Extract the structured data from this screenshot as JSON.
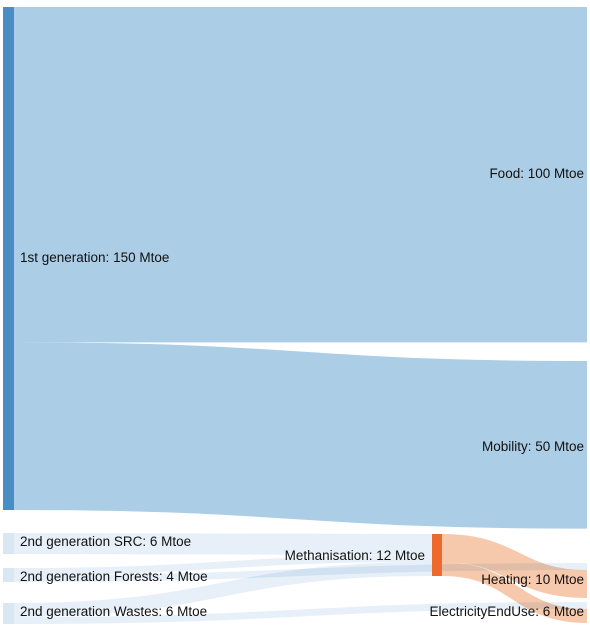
{
  "colors": {
    "first_gen_node": "#4a8cc4",
    "first_gen_link": "#abcde5",
    "second_gen_node": "#d9e7f3",
    "second_gen_link": "#e3edf7",
    "methanisation_node": "#ee6a2c",
    "methanisation_link": "#f6bf9d"
  },
  "chart_data": {
    "type": "sankey",
    "unit": "Mtoe",
    "nodes": [
      {
        "id": "first",
        "label": "1st generation: 150 Mtoe",
        "value": 150
      },
      {
        "id": "food",
        "label": "Food: 100 Mtoe",
        "value": 100
      },
      {
        "id": "mobility",
        "label": "Mobility: 50 Mtoe",
        "value": 50
      },
      {
        "id": "src",
        "label": "2nd generation SRC: 6 Mtoe",
        "value": 6
      },
      {
        "id": "forests",
        "label": "2nd generation Forests: 4 Mtoe",
        "value": 4
      },
      {
        "id": "wastes",
        "label": "2nd generation Wastes: 6 Mtoe",
        "value": 6
      },
      {
        "id": "meth",
        "label": "Methanisation: 12 Mtoe",
        "value": 12
      },
      {
        "id": "heating",
        "label": "Heating: 10 Mtoe",
        "value": 10
      },
      {
        "id": "elec",
        "label": "ElectricityEndUse: 6 Mtoe",
        "value": 6
      }
    ],
    "links": [
      {
        "source": "first",
        "target": "food",
        "value": 100
      },
      {
        "source": "first",
        "target": "mobility",
        "value": 50
      },
      {
        "source": "src",
        "target": "meth",
        "value": 6
      },
      {
        "source": "forests",
        "target": "meth",
        "value": 2
      },
      {
        "source": "forests",
        "target": "heating",
        "value": 2
      },
      {
        "source": "wastes",
        "target": "meth",
        "value": 4
      },
      {
        "source": "wastes",
        "target": "elec",
        "value": 2
      },
      {
        "source": "meth",
        "target": "heating",
        "value": 8
      },
      {
        "source": "meth",
        "target": "elec",
        "value": 4
      }
    ]
  }
}
